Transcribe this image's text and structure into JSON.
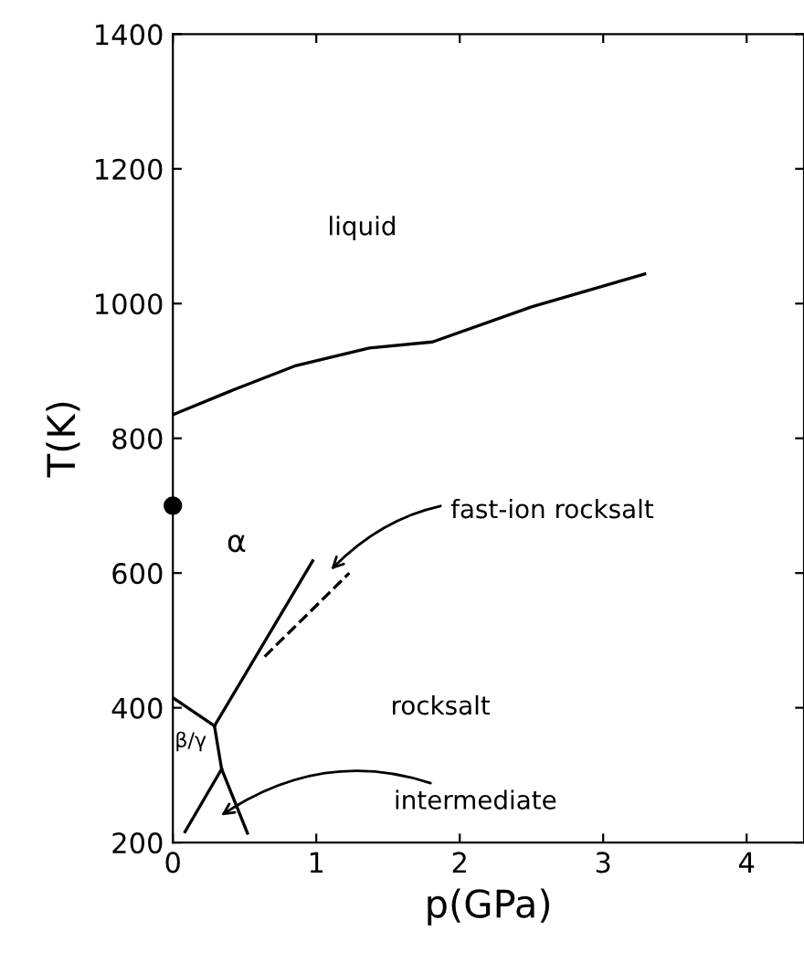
{
  "chart_data": {
    "type": "line",
    "xlabel": "p(GPa)",
    "ylabel": "T(K)",
    "xlim": [
      0,
      4.4
    ],
    "ylim": [
      200,
      1400
    ],
    "xticks": [
      0,
      1,
      2,
      3,
      4
    ],
    "yticks": [
      200,
      400,
      600,
      800,
      1000,
      1200,
      1400
    ],
    "grid": false,
    "legend": false,
    "marker": "none",
    "line_style": "solid",
    "series": [
      {
        "color": "#000000",
        "x": [
          0,
          0.4,
          0.86,
          1.37,
          1.81,
          2.5,
          3.29
        ],
        "values": [
          835,
          870,
          908,
          934,
          943,
          995,
          1044
        ]
      },
      {
        "color": "#000000",
        "x": [
          0,
          0.29
        ],
        "values": [
          415,
          373
        ]
      },
      {
        "color": "#000000",
        "x": [
          0.29,
          0.975
        ],
        "values": [
          373,
          618
        ]
      },
      {
        "color": "#000000",
        "x": [
          0.64,
          1.23
        ],
        "values": [
          476,
          600
        ],
        "line_style": "dashed"
      },
      {
        "color": "#000000",
        "x": [
          0.29,
          0.34,
          0.52
        ],
        "values": [
          373,
          309,
          214
        ]
      },
      {
        "color": "#000000",
        "x": [
          0.085,
          0.34
        ],
        "values": [
          216,
          309
        ]
      },
      {
        "type": "scatter",
        "color": "#000000",
        "x": [
          0
        ],
        "values": [
          700
        ],
        "marker": "circle"
      }
    ],
    "annotations": [
      "liquid",
      "α",
      "rocksalt",
      "β/γ",
      "intermediate",
      "fast-ion rocksalt"
    ]
  }
}
